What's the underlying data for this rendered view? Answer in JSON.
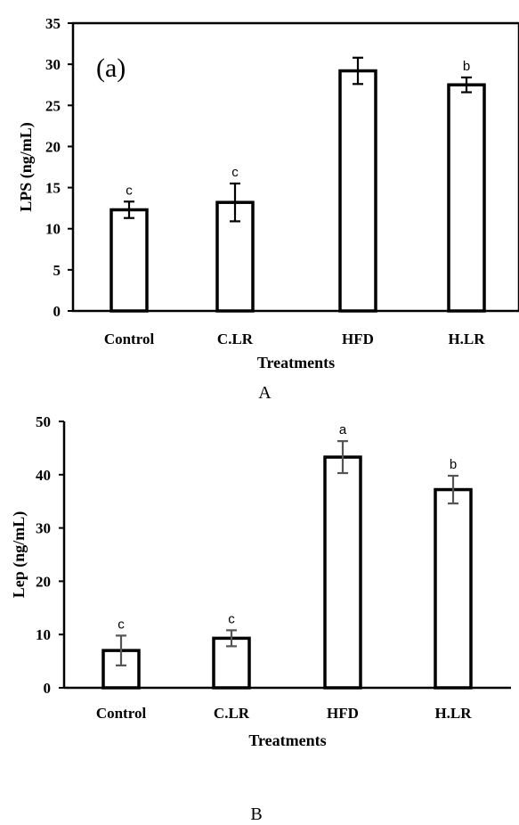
{
  "chart_data": [
    {
      "type": "bar",
      "panel_label": "A",
      "inset_label": "(a)",
      "categories": [
        "Control",
        "C.LR",
        "HFD",
        "H.LR"
      ],
      "values": [
        12.3,
        13.2,
        29.2,
        27.5
      ],
      "errors": [
        1.0,
        2.3,
        1.6,
        0.9
      ],
      "significance": [
        "c",
        "c",
        "",
        "b"
      ],
      "ylabel": "LPS (ng/mL)",
      "xlabel": "Treatments",
      "ylim": [
        0,
        35
      ],
      "yticks": [
        0,
        5,
        10,
        15,
        20,
        25,
        30,
        35
      ],
      "grid": false,
      "bar_fill": "#ffffff",
      "bar_stroke": "#000000",
      "error_color": "#000000"
    },
    {
      "type": "bar",
      "panel_label": "B",
      "categories": [
        "Control",
        "C.LR",
        "HFD",
        "H.LR"
      ],
      "values": [
        7,
        9.3,
        43.3,
        37.2
      ],
      "errors": [
        2.8,
        1.5,
        3.0,
        2.6
      ],
      "significance": [
        "c",
        "c",
        "a",
        "b"
      ],
      "ylabel": "Lep (ng/mL)",
      "xlabel": "Treatments",
      "ylim": [
        0,
        50
      ],
      "yticks": [
        0,
        10,
        20,
        30,
        40,
        50
      ],
      "grid": false,
      "bar_fill": "#ffffff",
      "bar_stroke": "#000000",
      "error_color": "#555555"
    }
  ]
}
